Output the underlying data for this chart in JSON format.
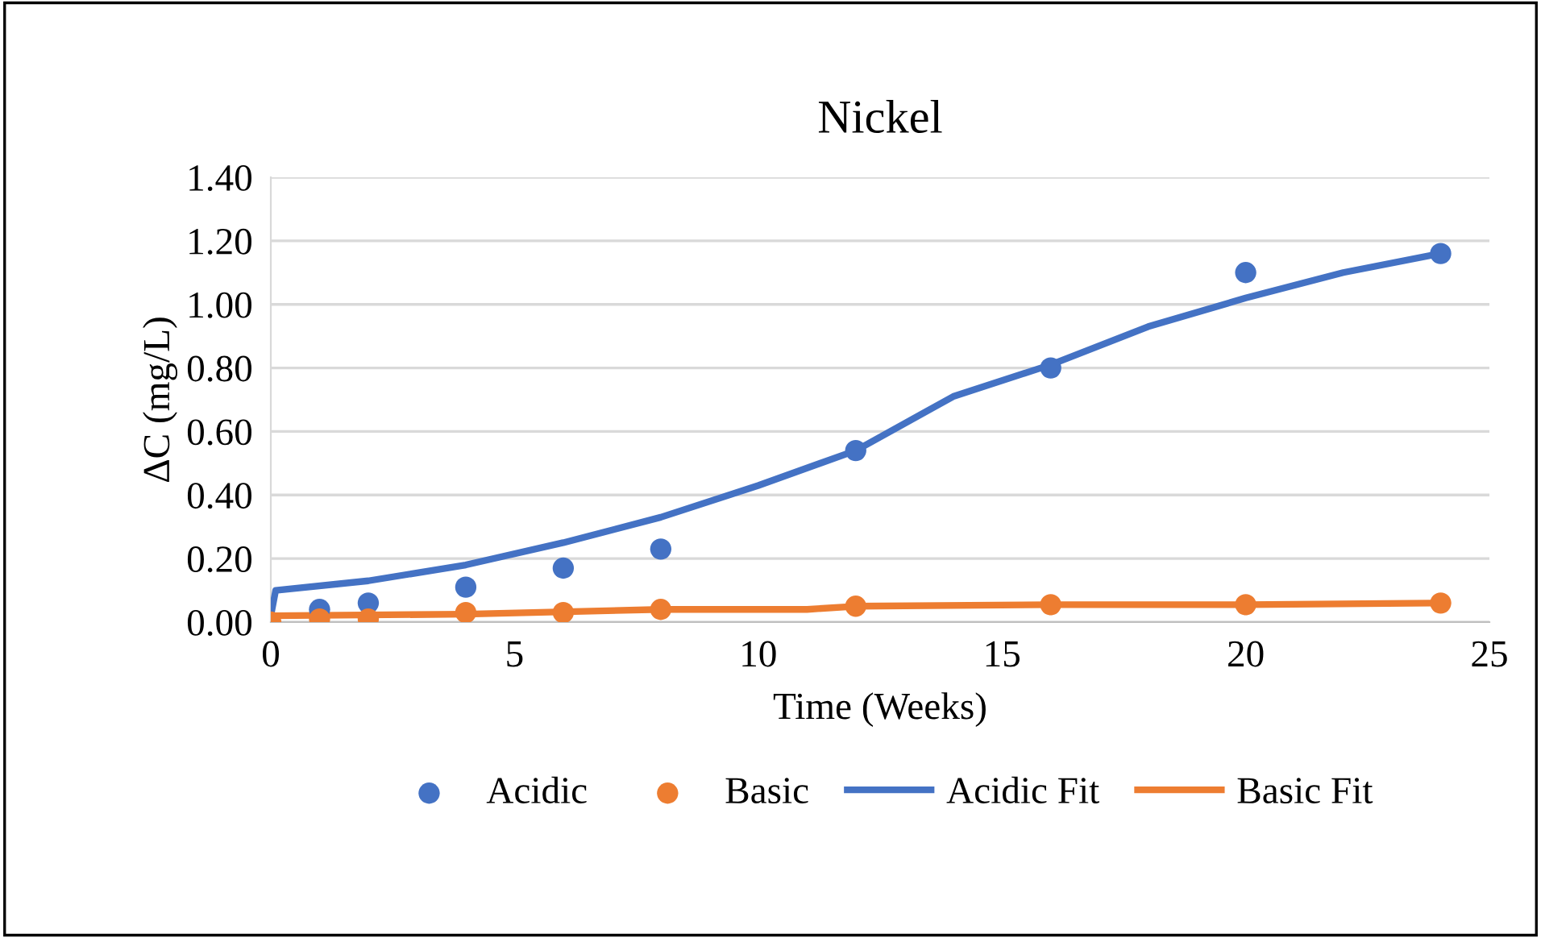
{
  "chart_data": {
    "type": "scatter",
    "title": "Nickel",
    "xlabel": "Time (Weeks)",
    "ylabel": "ΔC (mg/L)",
    "xlim": [
      0,
      25
    ],
    "xticks": [
      0,
      5,
      10,
      15,
      20,
      25
    ],
    "ylim": [
      0,
      1.4
    ],
    "yticks": [
      {
        "value": 0,
        "label": "0.00"
      },
      {
        "value": 0.2,
        "label": "0.20"
      },
      {
        "value": 0.4,
        "label": "0.40"
      },
      {
        "value": 0.6,
        "label": "0.60"
      },
      {
        "value": 0.8,
        "label": "0.80"
      },
      {
        "value": 1.0,
        "label": "1.00"
      },
      {
        "value": 1.2,
        "label": "1.20"
      },
      {
        "value": 1.4,
        "label": "1.40"
      }
    ],
    "grid": "y",
    "legend": "bottom",
    "series": [
      {
        "name": "Acidic",
        "marker": "circle",
        "color": "#4472c4",
        "x": [
          1,
          2,
          4,
          6,
          8,
          12,
          16,
          20,
          24
        ],
        "values": [
          0.04,
          0.06,
          0.11,
          0.17,
          0.23,
          0.54,
          0.8,
          1.1,
          1.16
        ]
      },
      {
        "name": "Basic",
        "marker": "circle",
        "color": "#ed7d31",
        "x": [
          0,
          1,
          2,
          4,
          6,
          8,
          12,
          16,
          20,
          24
        ],
        "values": [
          0.0,
          0.01,
          0.01,
          0.03,
          0.03,
          0.04,
          0.05,
          0.055,
          0.055,
          0.06
        ]
      },
      {
        "name": "Acidic Fit",
        "type": "line",
        "marker": "none",
        "color": "#4472c4",
        "x": [
          0,
          0.1,
          2,
          4,
          6,
          8,
          10,
          12,
          14,
          16,
          18,
          20,
          22,
          24
        ],
        "values": [
          0.02,
          0.1,
          0.13,
          0.18,
          0.25,
          0.33,
          0.43,
          0.54,
          0.71,
          0.81,
          0.93,
          1.02,
          1.1,
          1.16
        ]
      },
      {
        "name": "Basic Fit",
        "type": "line",
        "marker": "none",
        "color": "#ed7d31",
        "x": [
          0,
          4,
          8,
          11,
          12,
          16,
          20,
          24
        ],
        "values": [
          0.02,
          0.025,
          0.04,
          0.04,
          0.05,
          0.055,
          0.055,
          0.06
        ]
      }
    ]
  }
}
